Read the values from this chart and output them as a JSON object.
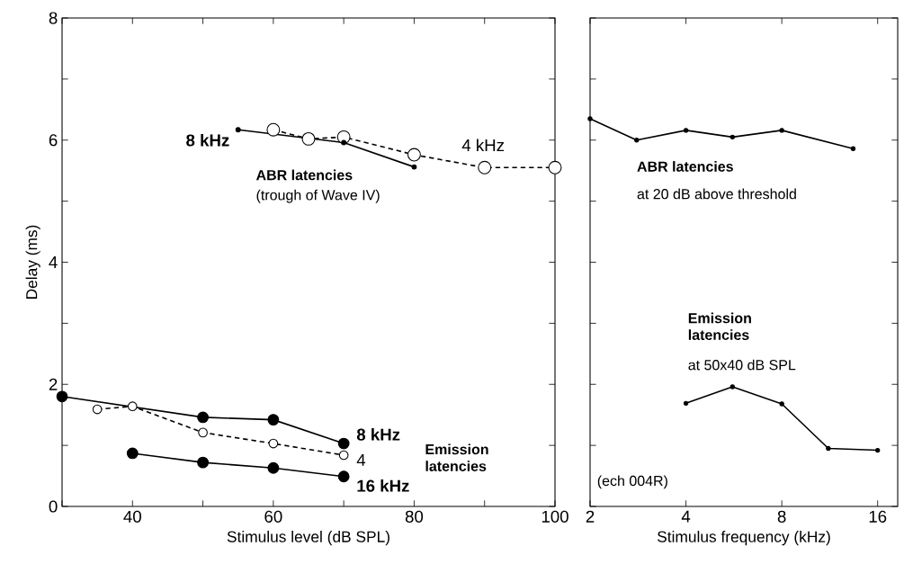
{
  "chart_data": [
    {
      "type": "line",
      "xlabel": "Stimulus level (dB SPL)",
      "ylabel": "Delay (ms)",
      "xlim": [
        30,
        100
      ],
      "ylim": [
        0,
        8
      ],
      "xticks": [
        {
          "value": 30,
          "label": null
        },
        40,
        {
          "value": 50,
          "label": null
        },
        60,
        {
          "value": 70,
          "label": null
        },
        80,
        {
          "value": 90,
          "label": null
        },
        100
      ],
      "yticks": [
        0,
        {
          "value": 1,
          "label": null
        },
        2,
        {
          "value": 3,
          "label": null
        },
        4,
        {
          "value": 5,
          "label": null
        },
        6,
        {
          "value": 7,
          "label": null
        },
        8
      ],
      "series": [
        {
          "name": "4 kHz",
          "color": "#000000",
          "marker": "circle",
          "line_style": "dashed",
          "x": [
            60,
            65,
            70,
            80,
            90,
            100
          ],
          "values": [
            6.17,
            6.02,
            6.05,
            5.76,
            5.55,
            5.55
          ]
        },
        {
          "name": "8 kHz",
          "color": "#000000",
          "marker": "circle",
          "line_style": "solid",
          "x": [
            55,
            70,
            80
          ],
          "values": [
            6.17,
            5.96,
            5.56
          ]
        },
        {
          "name": "8 kHz",
          "color": "#000000",
          "marker": "circle",
          "line_style": "solid",
          "x": [
            30,
            50,
            60,
            70
          ],
          "values": [
            1.8,
            1.46,
            1.42,
            1.03
          ]
        },
        {
          "name": "4",
          "color": "#000000",
          "marker": "circle",
          "line_style": "dashed",
          "x": [
            35,
            40,
            50,
            60,
            70
          ],
          "values": [
            1.59,
            1.64,
            1.21,
            1.03,
            0.84
          ]
        },
        {
          "name": "16 kHz",
          "color": "#000000",
          "marker": "circle",
          "line_style": "solid",
          "x": [
            40,
            50,
            60,
            70
          ],
          "values": [
            0.87,
            0.72,
            0.63,
            0.49
          ]
        }
      ],
      "annotations": [
        "ABR latencies",
        "(trough of Wave IV)",
        "Emission latencies"
      ]
    },
    {
      "type": "line",
      "xlabel": "Stimulus frequency (kHz)",
      "log": "x",
      "xlim": [
        2,
        18.5
      ],
      "ylim": [
        0,
        8
      ],
      "xticks": [
        2,
        4,
        8,
        16
      ],
      "yticks": [
        {
          "value": 0,
          "label": null
        },
        {
          "value": 1,
          "label": null
        },
        {
          "value": 2,
          "label": null
        },
        {
          "value": 3,
          "label": null
        },
        {
          "value": 4,
          "label": null
        },
        {
          "value": 5,
          "label": null
        },
        {
          "value": 6,
          "label": null
        },
        {
          "value": 7,
          "label": null
        },
        {
          "value": 8,
          "label": null
        }
      ],
      "tick_labels": "x",
      "series": [
        {
          "color": "#000000",
          "marker": "circle",
          "line_style": "solid",
          "x": [
            2,
            2.8,
            4,
            5.6,
            8,
            13.4
          ],
          "values": [
            6.35,
            6.0,
            6.16,
            6.05,
            6.16,
            5.86
          ]
        },
        {
          "color": "#000000",
          "marker": "circle",
          "line_style": "solid",
          "x": [
            4,
            5.6,
            8,
            11.2,
            16
          ],
          "values": [
            1.69,
            1.96,
            1.68,
            0.95,
            0.92
          ]
        }
      ],
      "annotations": [
        "ABR latencies",
        "at 20 dB above threshold",
        "Emission latencies",
        "at 50x40 dB SPL",
        "(ech 004R)"
      ]
    }
  ]
}
